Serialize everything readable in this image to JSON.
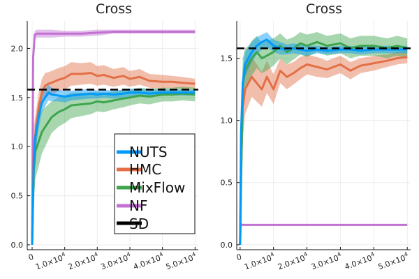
{
  "colors": {
    "NUTS": "#009AFA",
    "HMC": "#E26F46",
    "MixFlow": "#3EA44E",
    "NF": "#C271D2",
    "SD": "#000000"
  },
  "legend": {
    "placement": "lower-right of left panel",
    "entries": [
      "NUTS",
      "HMC",
      "MixFlow",
      "NF",
      "SD"
    ]
  },
  "chart_data": [
    {
      "type": "line",
      "title": "Cross",
      "xlabel": "",
      "ylabel": "",
      "xlim": [
        -1500,
        51000
      ],
      "ylim": [
        -0.05,
        2.28
      ],
      "grid": true,
      "x_ticks": [
        0,
        10000,
        20000,
        30000,
        40000,
        50000
      ],
      "x_tick_labels": [
        {
          "base": "0",
          "sup": ""
        },
        {
          "base": "1.0×10",
          "sup": "4"
        },
        {
          "base": "2.0×10",
          "sup": "4"
        },
        {
          "base": "3.0×10",
          "sup": "4"
        },
        {
          "base": "4.0×10",
          "sup": "4"
        },
        {
          "base": "5.0×10",
          "sup": "4"
        }
      ],
      "y_ticks": [
        0.0,
        0.5,
        1.0,
        1.5,
        2.0
      ],
      "y_tick_labels": [
        "0.0",
        "0.5",
        "1.0",
        "1.5",
        "2.0"
      ],
      "reference": {
        "name": "SD",
        "y": 1.58,
        "style": "dashed"
      },
      "series": [
        {
          "name": "NF",
          "x": [
            0,
            300,
            800,
            1500,
            3000,
            6000,
            10000,
            15000,
            20000,
            25000,
            30000,
            35000,
            40000,
            45000,
            50000
          ],
          "y": [
            0,
            1.9,
            2.14,
            2.15,
            2.15,
            2.15,
            2.15,
            2.15,
            2.16,
            2.17,
            2.17,
            2.17,
            2.17,
            2.17,
            2.17
          ],
          "band": [
            0,
            0.1,
            0.04,
            0.04,
            0.04,
            0.04,
            0.03,
            0.03,
            0.03,
            0.02,
            0.02,
            0.02,
            0.02,
            0.02,
            0.02
          ]
        },
        {
          "name": "HMC",
          "x": [
            0,
            500,
            1000,
            2000,
            3000,
            4000,
            5000,
            6000,
            8000,
            10000,
            12000,
            15000,
            18000,
            20000,
            22000,
            25000,
            28000,
            30000,
            33000,
            36000,
            40000,
            43000,
            46000,
            50000
          ],
          "y": [
            0,
            0.95,
            1.12,
            1.4,
            1.55,
            1.62,
            1.64,
            1.65,
            1.68,
            1.7,
            1.74,
            1.74,
            1.75,
            1.72,
            1.73,
            1.7,
            1.72,
            1.69,
            1.71,
            1.67,
            1.66,
            1.66,
            1.65,
            1.64
          ],
          "band": [
            0,
            0.25,
            0.2,
            0.15,
            0.14,
            0.13,
            0.12,
            0.12,
            0.12,
            0.12,
            0.12,
            0.11,
            0.11,
            0.1,
            0.1,
            0.09,
            0.09,
            0.08,
            0.08,
            0.07,
            0.07,
            0.06,
            0.06,
            0.05
          ]
        },
        {
          "name": "MixFlow",
          "x": [
            0,
            500,
            1000,
            2000,
            3000,
            4000,
            5000,
            6000,
            8000,
            10000,
            12000,
            15000,
            18000,
            20000,
            22000,
            25000,
            28000,
            30000,
            33000,
            36000,
            40000,
            43000,
            46000,
            50000
          ],
          "y": [
            0,
            0.75,
            0.95,
            1.05,
            1.15,
            1.2,
            1.25,
            1.3,
            1.35,
            1.38,
            1.42,
            1.43,
            1.44,
            1.46,
            1.45,
            1.47,
            1.49,
            1.5,
            1.52,
            1.51,
            1.53,
            1.53,
            1.54,
            1.53
          ],
          "band": [
            0,
            0.3,
            0.28,
            0.25,
            0.22,
            0.2,
            0.18,
            0.16,
            0.15,
            0.14,
            0.13,
            0.12,
            0.11,
            0.1,
            0.1,
            0.09,
            0.09,
            0.08,
            0.08,
            0.08,
            0.07,
            0.07,
            0.07,
            0.07
          ]
        },
        {
          "name": "NUTS",
          "x": [
            0,
            500,
            1000,
            2000,
            3000,
            4000,
            5000,
            6000,
            8000,
            10000,
            12000,
            15000,
            18000,
            20000,
            22000,
            25000,
            28000,
            30000,
            33000,
            36000,
            40000,
            43000,
            46000,
            50000
          ],
          "y": [
            0,
            0.85,
            1.1,
            1.3,
            1.45,
            1.5,
            1.55,
            1.53,
            1.52,
            1.51,
            1.52,
            1.53,
            1.54,
            1.53,
            1.54,
            1.53,
            1.54,
            1.55,
            1.55,
            1.54,
            1.55,
            1.55,
            1.55,
            1.55
          ],
          "band": [
            0,
            0.2,
            0.15,
            0.12,
            0.1,
            0.09,
            0.08,
            0.07,
            0.06,
            0.06,
            0.05,
            0.05,
            0.05,
            0.04,
            0.04,
            0.04,
            0.04,
            0.04,
            0.04,
            0.04,
            0.03,
            0.03,
            0.03,
            0.03
          ]
        }
      ]
    },
    {
      "type": "line",
      "title": "Cross",
      "xlabel": "",
      "ylabel": "",
      "xlim": [
        -1000,
        51000
      ],
      "ylim": [
        -0.04,
        1.8
      ],
      "grid": true,
      "x_ticks": [
        0,
        10000,
        20000,
        30000,
        40000,
        50000
      ],
      "x_tick_labels": [
        {
          "base": "0",
          "sup": ""
        },
        {
          "base": "1.0×10",
          "sup": "4"
        },
        {
          "base": "2.0×10",
          "sup": "4"
        },
        {
          "base": "3.0×10",
          "sup": "4"
        },
        {
          "base": "4.0×10",
          "sup": "4"
        },
        {
          "base": "5.0×10",
          "sup": "4"
        }
      ],
      "y_ticks": [
        0.0,
        0.5,
        1.0,
        1.5
      ],
      "y_tick_labels": [
        "0.0",
        "0.5",
        "1.0",
        "1.5"
      ],
      "reference": {
        "name": "SD",
        "y": 1.58,
        "style": "dashed"
      },
      "series": [
        {
          "name": "NF",
          "x": [
            0,
            200,
            500,
            1000,
            5000,
            10000,
            20000,
            30000,
            40000,
            50000
          ],
          "y": [
            0,
            0.17,
            0.16,
            0.16,
            0.16,
            0.16,
            0.16,
            0.16,
            0.16,
            0.16
          ],
          "band": [
            0,
            0.01,
            0.005,
            0.005,
            0.005,
            0.005,
            0.005,
            0.005,
            0.005,
            0.005
          ]
        },
        {
          "name": "HMC",
          "x": [
            0,
            300,
            800,
            1500,
            2500,
            3500,
            5000,
            6500,
            8000,
            10000,
            12000,
            14000,
            16000,
            18000,
            20000,
            23000,
            26000,
            30000,
            33000,
            36000,
            40000,
            44000,
            47000,
            50000
          ],
          "y": [
            0,
            0.6,
            1.1,
            1.25,
            1.3,
            1.35,
            1.3,
            1.25,
            1.35,
            1.25,
            1.4,
            1.35,
            1.38,
            1.42,
            1.45,
            1.43,
            1.41,
            1.45,
            1.4,
            1.44,
            1.46,
            1.48,
            1.5,
            1.51
          ],
          "band": [
            0,
            0.3,
            0.25,
            0.2,
            0.18,
            0.16,
            0.15,
            0.14,
            0.13,
            0.12,
            0.1,
            0.1,
            0.09,
            0.09,
            0.08,
            0.08,
            0.07,
            0.07,
            0.07,
            0.06,
            0.06,
            0.05,
            0.05,
            0.05
          ]
        },
        {
          "name": "MixFlow",
          "x": [
            0,
            300,
            800,
            1500,
            2500,
            3500,
            5000,
            6500,
            8000,
            10000,
            12000,
            14000,
            16000,
            18000,
            20000,
            23000,
            26000,
            30000,
            33000,
            36000,
            40000,
            44000,
            47000,
            50000
          ],
          "y": [
            0,
            0.5,
            1.3,
            1.4,
            1.45,
            1.5,
            1.55,
            1.5,
            1.52,
            1.55,
            1.6,
            1.55,
            1.58,
            1.62,
            1.6,
            1.63,
            1.6,
            1.62,
            1.58,
            1.6,
            1.6,
            1.58,
            1.6,
            1.58
          ],
          "band": [
            0,
            0.4,
            0.2,
            0.18,
            0.15,
            0.14,
            0.13,
            0.12,
            0.12,
            0.11,
            0.1,
            0.1,
            0.09,
            0.09,
            0.09,
            0.08,
            0.08,
            0.08,
            0.08,
            0.08,
            0.08,
            0.08,
            0.08,
            0.08
          ]
        },
        {
          "name": "NUTS",
          "x": [
            0,
            300,
            800,
            1500,
            2500,
            3500,
            5000,
            6500,
            8000,
            10000,
            12000,
            14000,
            16000,
            18000,
            20000,
            23000,
            26000,
            30000,
            33000,
            36000,
            40000,
            44000,
            47000,
            50000
          ],
          "y": [
            0,
            0.9,
            1.3,
            1.45,
            1.5,
            1.55,
            1.6,
            1.63,
            1.65,
            1.6,
            1.58,
            1.57,
            1.58,
            1.57,
            1.56,
            1.57,
            1.56,
            1.57,
            1.57,
            1.56,
            1.57,
            1.57,
            1.57,
            1.57
          ],
          "band": [
            0,
            0.2,
            0.12,
            0.1,
            0.09,
            0.08,
            0.07,
            0.06,
            0.06,
            0.05,
            0.05,
            0.04,
            0.04,
            0.04,
            0.04,
            0.03,
            0.03,
            0.03,
            0.03,
            0.03,
            0.03,
            0.03,
            0.03,
            0.03
          ]
        }
      ]
    }
  ]
}
